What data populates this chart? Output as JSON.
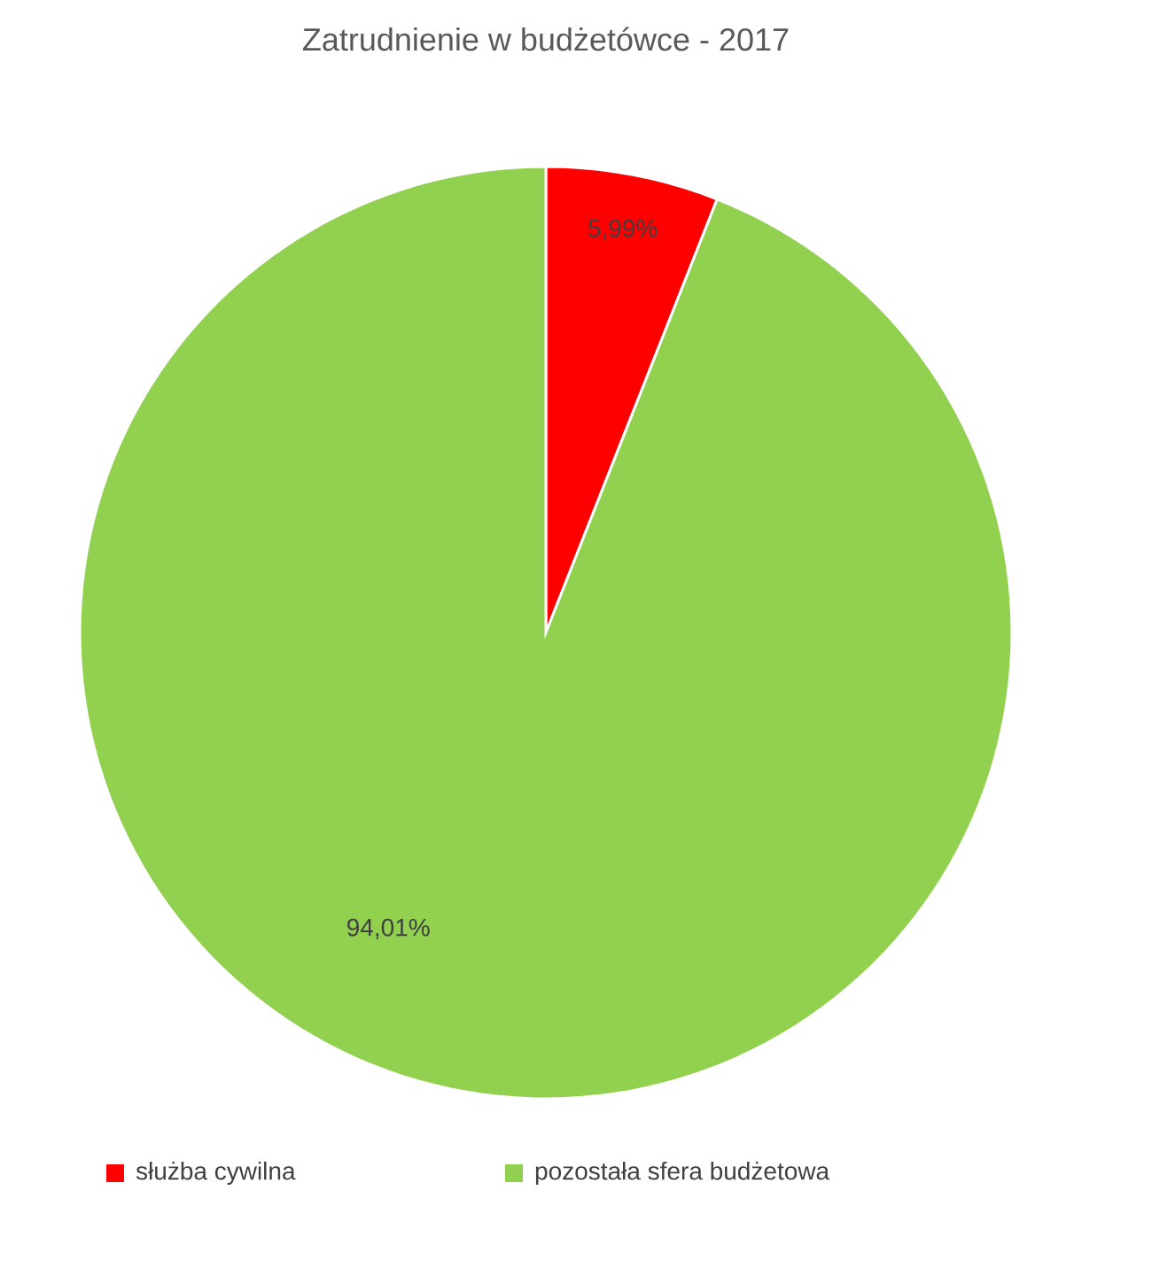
{
  "chart_data": {
    "type": "pie",
    "title": "Zatrudnienie w budżetówce - 2017",
    "categories": [
      "służba cywilna",
      "pozostała sfera budżetowa"
    ],
    "values": [
      5.99,
      94.01
    ],
    "colors": [
      "#ff0000",
      "#92d050"
    ],
    "value_labels": [
      "5,99%",
      "94,01%"
    ],
    "legend": "bottom"
  }
}
